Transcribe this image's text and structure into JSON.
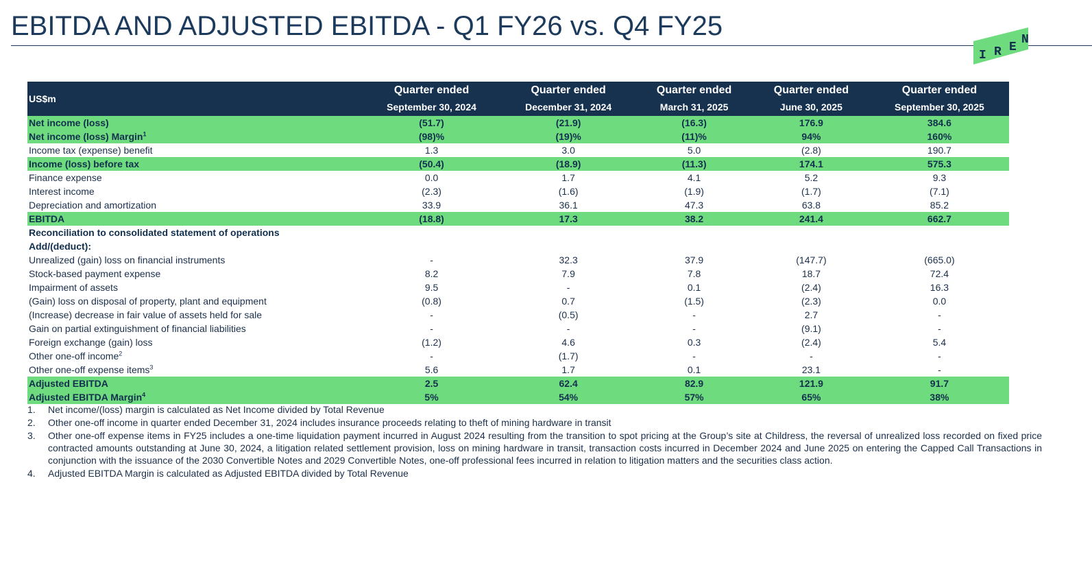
{
  "title": "EBITDA AND ADJUSTED EBITDA - Q1 FY26 vs. Q4 FY25",
  "logo": {
    "text": "IREN",
    "color": "#6fdb7f"
  },
  "colors": {
    "header_bg": "#16324f",
    "highlight": "#6fdb7f",
    "text": "#1b2f4a"
  },
  "table": {
    "unit_label": "US$m",
    "columns": [
      {
        "line1": "Quarter ended",
        "line2": "September 30, 2024"
      },
      {
        "line1": "Quarter ended",
        "line2": "December 31, 2024"
      },
      {
        "line1": "Quarter ended",
        "line2": "March 31, 2025"
      },
      {
        "line1": "Quarter ended",
        "line2": "June 30, 2025"
      },
      {
        "line1": "Quarter ended",
        "line2": "September 30, 2025"
      }
    ],
    "rows": [
      {
        "label": "Net income (loss)",
        "values": [
          "(51.7)",
          "(21.9)",
          "(16.3)",
          "176.9",
          "384.6"
        ],
        "style": "hl"
      },
      {
        "label": "Net income (loss) Margin",
        "sup": "1",
        "values": [
          "(98)%",
          "(19)%",
          "(11)%",
          "94%",
          "160%"
        ],
        "style": "hl"
      },
      {
        "label": "Income tax (expense) benefit",
        "values": [
          "1.3",
          "3.0",
          "5.0",
          "(2.8)",
          "190.7"
        ],
        "style": ""
      },
      {
        "label": "Income (loss) before tax",
        "values": [
          "(50.4)",
          "(18.9)",
          "(11.3)",
          "174.1",
          "575.3"
        ],
        "style": "hl"
      },
      {
        "label": "Finance expense",
        "values": [
          "0.0",
          "1.7",
          "4.1",
          "5.2",
          "9.3"
        ],
        "style": ""
      },
      {
        "label": "Interest income",
        "values": [
          "(2.3)",
          "(1.6)",
          "(1.9)",
          "(1.7)",
          "(7.1)"
        ],
        "style": ""
      },
      {
        "label": "Depreciation and amortization",
        "values": [
          "33.9",
          "36.1",
          "47.3",
          "63.8",
          "85.2"
        ],
        "style": ""
      },
      {
        "label": "EBITDA",
        "values": [
          "(18.8)",
          "17.3",
          "38.2",
          "241.4",
          "662.7"
        ],
        "style": "hl"
      },
      {
        "label": "Reconciliation to consolidated statement of operations",
        "values": [
          "",
          "",
          "",
          "",
          ""
        ],
        "style": "sec"
      },
      {
        "label": "Add/(deduct):",
        "values": [
          "",
          "",
          "",
          "",
          ""
        ],
        "style": "sec"
      },
      {
        "label": "Unrealized (gain) loss on financial instruments",
        "values": [
          "-",
          "32.3",
          "37.9",
          "(147.7)",
          "(665.0)"
        ],
        "style": ""
      },
      {
        "label": "Stock-based payment expense",
        "values": [
          "8.2",
          "7.9",
          "7.8",
          "18.7",
          "72.4"
        ],
        "style": ""
      },
      {
        "label": "Impairment of assets",
        "values": [
          "9.5",
          "-",
          "0.1",
          "(2.4)",
          "16.3"
        ],
        "style": ""
      },
      {
        "label": "(Gain) loss on disposal of property, plant and equipment",
        "values": [
          "(0.8)",
          "0.7",
          "(1.5)",
          "(2.3)",
          "0.0"
        ],
        "style": ""
      },
      {
        "label": "(Increase) decrease in fair value of assets held for sale",
        "values": [
          "-",
          "(0.5)",
          "-",
          "2.7",
          "-"
        ],
        "style": ""
      },
      {
        "label": "Gain on partial extinguishment of financial liabilities",
        "values": [
          "-",
          "-",
          "-",
          "(9.1)",
          "-"
        ],
        "style": ""
      },
      {
        "label": "Foreign exchange (gain) loss",
        "values": [
          "(1.2)",
          "4.6",
          "0.3",
          "(2.4)",
          "5.4"
        ],
        "style": ""
      },
      {
        "label": "Other one-off income",
        "sup": "2",
        "values": [
          "-",
          "(1.7)",
          "-",
          "-",
          "-"
        ],
        "style": ""
      },
      {
        "label": "Other one-off expense items",
        "sup": "3",
        "values": [
          "5.6",
          "1.7",
          "0.1",
          "23.1",
          "-"
        ],
        "style": ""
      },
      {
        "label": "Adjusted EBITDA",
        "values": [
          "2.5",
          "62.4",
          "82.9",
          "121.9",
          "91.7"
        ],
        "style": "hl"
      },
      {
        "label": "Adjusted EBITDA Margin",
        "sup": "4",
        "values": [
          "5%",
          "54%",
          "57%",
          "65%",
          "38%"
        ],
        "style": "hl"
      }
    ]
  },
  "notes": [
    {
      "num": "1.",
      "text": "Net income/(loss) margin is calculated as Net Income divided by Total Revenue"
    },
    {
      "num": "2.",
      "text": "Other one-off income in quarter ended December 31, 2024 includes insurance proceeds relating to theft of mining hardware in transit"
    },
    {
      "num": "3.",
      "text": "Other one-off expense items in FY25 includes a one-time liquidation payment incurred in August 2024 resulting from the transition to spot pricing at the Group’s site at Childress, the reversal of unrealized loss recorded on fixed price contracted amounts outstanding at June 30, 2024, a litigation related settlement provision, loss on mining hardware in transit, transaction costs incurred in December 2024 and June 2025 on entering the Capped Call Transactions in conjunction with the issuance of the 2030 Convertible Notes and 2029 Convertible Notes, one-off professional fees incurred in relation to litigation matters and the securities class action."
    },
    {
      "num": "4.",
      "text": "Adjusted EBITDA Margin is calculated as Adjusted EBITDA divided by Total Revenue"
    }
  ]
}
